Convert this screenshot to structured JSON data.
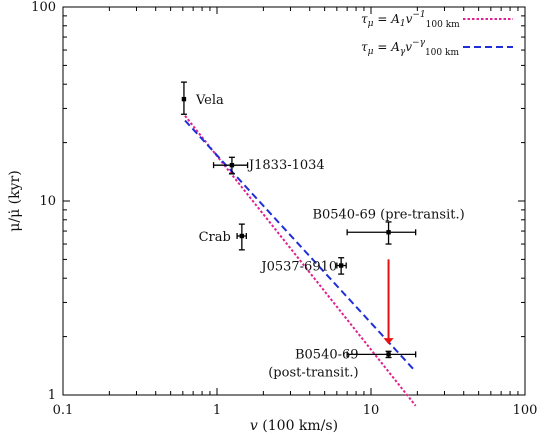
{
  "chart_data": {
    "type": "scatter",
    "xlabel": "v (100 km/s)",
    "ylabel": "μ/μ̇ (kyr)",
    "x_scale": "log",
    "y_scale": "log",
    "xlim": [
      0.1,
      100
    ],
    "ylim": [
      1,
      100
    ],
    "x_ticks": [
      {
        "value": 0.1,
        "label": "0.1"
      },
      {
        "value": 1,
        "label": "1"
      },
      {
        "value": 10,
        "label": "10"
      },
      {
        "value": 100,
        "label": "100"
      }
    ],
    "y_ticks": [
      {
        "value": 1,
        "label": "1"
      },
      {
        "value": 10,
        "label": "10"
      },
      {
        "value": 100,
        "label": "100"
      }
    ],
    "grid": false,
    "legend_position": "top-right",
    "legend": [
      {
        "label": "τμ = A1 v100 km^−1",
        "color": "#e0208f",
        "dash": "dotted"
      },
      {
        "label": "τμ = Aγ v100 km^−γ",
        "color": "#1f2fd8",
        "dash": "dashed"
      }
    ],
    "lines": [
      {
        "color": "#e0208f",
        "dash": "dotted",
        "x": [
          0.62,
          19.5
        ],
        "y": [
          27.5,
          0.88
        ]
      },
      {
        "color": "#1f2fd8",
        "dash": "dashed",
        "x": [
          0.62,
          19.5
        ],
        "y": [
          26.0,
          1.32
        ]
      }
    ],
    "points": [
      {
        "label": "Vela",
        "x": 0.61,
        "y": 33.5,
        "y_err": [
          28.0,
          41.0
        ],
        "x_err": null
      },
      {
        "label": "J1833-1034",
        "x": 1.25,
        "y": 15.3,
        "y_err": [
          13.8,
          16.8
        ],
        "x_err": [
          0.95,
          1.58
        ]
      },
      {
        "label": "Crab",
        "x": 1.45,
        "y": 6.6,
        "y_err": [
          5.6,
          7.6
        ],
        "x_err": [
          1.35,
          1.55
        ]
      },
      {
        "label": "J0537-6910",
        "x": 6.4,
        "y": 4.65,
        "y_err": [
          4.2,
          5.1
        ],
        "x_err": [
          6.0,
          6.9
        ]
      },
      {
        "label": "B0540-69 (pre-transit.)",
        "x": 13.0,
        "y": 6.9,
        "y_err": [
          6.0,
          7.8
        ],
        "x_err": [
          7.0,
          19.5
        ]
      },
      {
        "label": "B0540-69",
        "label_line2": "(post-transit.)",
        "x": 13.0,
        "y": 1.62,
        "y_err": [
          1.56,
          1.68
        ],
        "x_err": [
          7.0,
          19.5
        ]
      }
    ],
    "annotations": [
      {
        "type": "arrow",
        "color": "#e81010",
        "from": [
          13.0,
          5.0
        ],
        "to": [
          13.0,
          1.85
        ]
      }
    ]
  }
}
